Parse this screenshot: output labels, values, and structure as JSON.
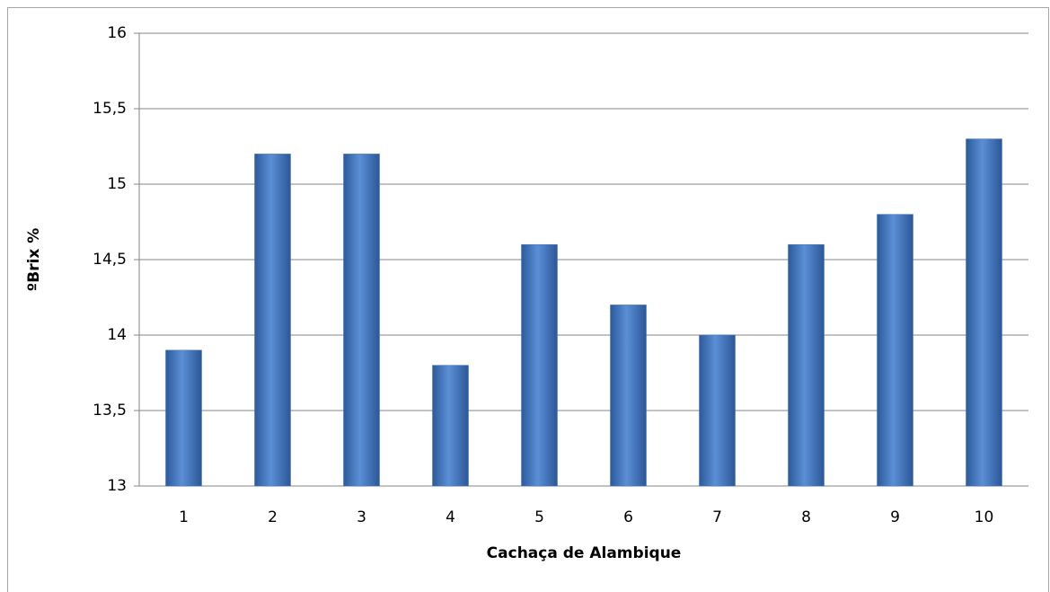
{
  "chart_data": {
    "type": "bar",
    "x_label": "Cachaça de Alambique",
    "y_label": "ºBrix %",
    "categories": [
      "1",
      "2",
      "3",
      "4",
      "5",
      "6",
      "7",
      "8",
      "9",
      "10"
    ],
    "values": [
      13.9,
      15.2,
      15.2,
      13.8,
      14.6,
      14.2,
      14.0,
      14.6,
      14.8,
      15.3
    ],
    "color": "#3f74c0",
    "ylim": [
      13,
      16
    ],
    "yticks": [
      13,
      {
        "value": 13.5,
        "label": "13,5"
      },
      14,
      {
        "value": 14.5,
        "label": "14,5"
      },
      15,
      {
        "value": 15.5,
        "label": "15,5"
      },
      16
    ],
    "grid": true
  }
}
